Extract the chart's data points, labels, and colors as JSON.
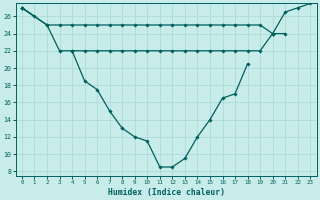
{
  "x_all": [
    0,
    1,
    2,
    3,
    4,
    5,
    6,
    7,
    8,
    9,
    10,
    11,
    12,
    13,
    14,
    15,
    16,
    17,
    18,
    19,
    20,
    21,
    22,
    23
  ],
  "line_top": [
    27,
    26,
    null,
    null,
    null,
    null,
    null,
    null,
    null,
    null,
    null,
    null,
    null,
    null,
    null,
    null,
    null,
    null,
    null,
    null,
    null,
    null,
    null,
    null
  ],
  "line_flat_upper": [
    27,
    null,
    25,
    25,
    25,
    25,
    25,
    25,
    25,
    25,
    25,
    25,
    25,
    25,
    25,
    25,
    25,
    25,
    25,
    25,
    24,
    null,
    null,
    null
  ],
  "line_flat_lower": [
    null,
    null,
    null,
    null,
    22,
    22,
    22,
    22,
    22,
    22,
    22,
    22,
    22,
    22,
    22,
    22,
    22,
    22,
    22,
    22,
    24,
    24,
    null,
    null
  ],
  "line_v": [
    27,
    null,
    25,
    22,
    22,
    18.5,
    17.5,
    15,
    13,
    12,
    11.5,
    8.5,
    8.5,
    9.5,
    12,
    14,
    16.5,
    17,
    20.5,
    null,
    null,
    null,
    null,
    null
  ],
  "line_rise": [
    null,
    null,
    null,
    null,
    null,
    null,
    null,
    null,
    null,
    null,
    null,
    null,
    null,
    null,
    null,
    null,
    null,
    null,
    null,
    null,
    24,
    26.5,
    27,
    27.5
  ],
  "bg_color": "#c8ece9",
  "grid_color": "#a8d8d4",
  "line_color": "#005f5f",
  "xlabel": "Humidex (Indice chaleur)",
  "ylim": [
    7.5,
    27.5
  ],
  "xlim": [
    -0.5,
    23.5
  ],
  "yticks": [
    8,
    10,
    12,
    14,
    16,
    18,
    20,
    22,
    24,
    26
  ],
  "xticks": [
    0,
    1,
    2,
    3,
    4,
    5,
    6,
    7,
    8,
    9,
    10,
    11,
    12,
    13,
    14,
    15,
    16,
    17,
    18,
    19,
    20,
    21,
    22,
    23
  ]
}
